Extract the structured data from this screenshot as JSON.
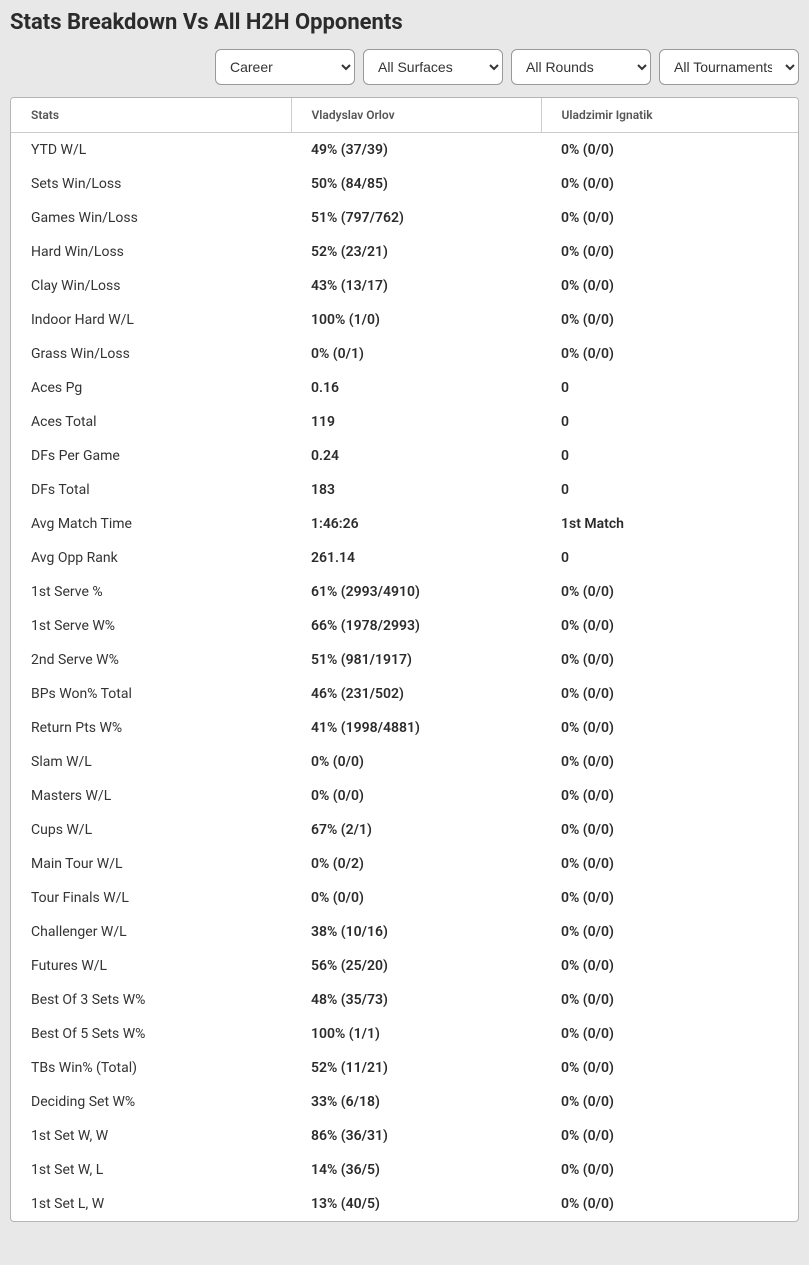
{
  "title": "Stats Breakdown Vs All H2H Opponents",
  "filters": {
    "career": "Career",
    "surfaces": "All Surfaces",
    "rounds": "All Rounds",
    "tournaments": "All Tournaments"
  },
  "columns": {
    "stats": "Stats",
    "player1": "Vladyslav Orlov",
    "player2": "Uladzimir Ignatik"
  },
  "rows": [
    {
      "stat": "YTD W/L",
      "p1": "49% (37/39)",
      "p2": "0% (0/0)"
    },
    {
      "stat": "Sets Win/Loss",
      "p1": "50% (84/85)",
      "p2": "0% (0/0)"
    },
    {
      "stat": "Games Win/Loss",
      "p1": "51% (797/762)",
      "p2": "0% (0/0)"
    },
    {
      "stat": "Hard Win/Loss",
      "p1": "52% (23/21)",
      "p2": "0% (0/0)"
    },
    {
      "stat": "Clay Win/Loss",
      "p1": "43% (13/17)",
      "p2": "0% (0/0)"
    },
    {
      "stat": "Indoor Hard W/L",
      "p1": "100% (1/0)",
      "p2": "0% (0/0)"
    },
    {
      "stat": "Grass Win/Loss",
      "p1": "0% (0/1)",
      "p2": "0% (0/0)"
    },
    {
      "stat": "Aces Pg",
      "p1": "0.16",
      "p2": "0"
    },
    {
      "stat": "Aces Total",
      "p1": "119",
      "p2": "0"
    },
    {
      "stat": "DFs Per Game",
      "p1": "0.24",
      "p2": "0"
    },
    {
      "stat": "DFs Total",
      "p1": "183",
      "p2": "0"
    },
    {
      "stat": "Avg Match Time",
      "p1": "1:46:26",
      "p2": "1st Match"
    },
    {
      "stat": "Avg Opp Rank",
      "p1": "261.14",
      "p2": "0"
    },
    {
      "stat": "1st Serve %",
      "p1": "61% (2993/4910)",
      "p2": "0% (0/0)"
    },
    {
      "stat": "1st Serve W%",
      "p1": "66% (1978/2993)",
      "p2": "0% (0/0)"
    },
    {
      "stat": "2nd Serve W%",
      "p1": "51% (981/1917)",
      "p2": "0% (0/0)"
    },
    {
      "stat": "BPs Won% Total",
      "p1": "46% (231/502)",
      "p2": "0% (0/0)"
    },
    {
      "stat": "Return Pts W%",
      "p1": "41% (1998/4881)",
      "p2": "0% (0/0)"
    },
    {
      "stat": "Slam W/L",
      "p1": "0% (0/0)",
      "p2": "0% (0/0)"
    },
    {
      "stat": "Masters W/L",
      "p1": "0% (0/0)",
      "p2": "0% (0/0)"
    },
    {
      "stat": "Cups W/L",
      "p1": "67% (2/1)",
      "p2": "0% (0/0)"
    },
    {
      "stat": "Main Tour W/L",
      "p1": "0% (0/2)",
      "p2": "0% (0/0)"
    },
    {
      "stat": "Tour Finals W/L",
      "p1": "0% (0/0)",
      "p2": "0% (0/0)"
    },
    {
      "stat": "Challenger W/L",
      "p1": "38% (10/16)",
      "p2": "0% (0/0)"
    },
    {
      "stat": "Futures W/L",
      "p1": "56% (25/20)",
      "p2": "0% (0/0)"
    },
    {
      "stat": "Best Of 3 Sets W%",
      "p1": "48% (35/73)",
      "p2": "0% (0/0)"
    },
    {
      "stat": "Best Of 5 Sets W%",
      "p1": "100% (1/1)",
      "p2": "0% (0/0)"
    },
    {
      "stat": "TBs Win% (Total)",
      "p1": "52% (11/21)",
      "p2": "0% (0/0)"
    },
    {
      "stat": "Deciding Set W%",
      "p1": "33% (6/18)",
      "p2": "0% (0/0)"
    },
    {
      "stat": "1st Set W, W",
      "p1": "86% (36/31)",
      "p2": "0% (0/0)"
    },
    {
      "stat": "1st Set W, L",
      "p1": "14% (36/5)",
      "p2": "0% (0/0)"
    },
    {
      "stat": "1st Set L, W",
      "p1": "13% (40/5)",
      "p2": "0% (0/0)"
    }
  ]
}
